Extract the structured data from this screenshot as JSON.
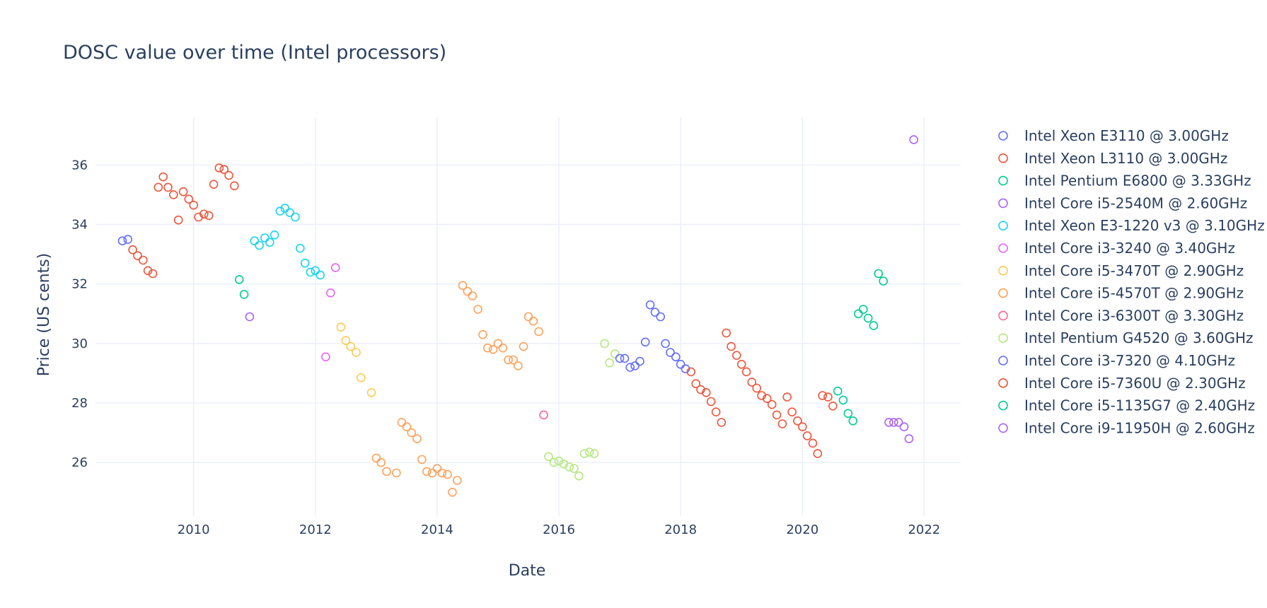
{
  "chart_data": {
    "type": "scatter",
    "title": "DOSC value over time (Intel processors)",
    "xlabel": "Date",
    "ylabel": "Price (US cents)",
    "xlim": [
      2008.4,
      2022.6
    ],
    "ylim": [
      24.2,
      37.6
    ],
    "x_ticks": [
      2010,
      2012,
      2014,
      2016,
      2018,
      2020,
      2022
    ],
    "y_ticks": [
      26,
      28,
      30,
      32,
      34,
      36
    ],
    "grid": true,
    "legend_position": "right",
    "marker": "open-circle",
    "series": [
      {
        "name": "Intel Xeon E3110 @ 3.00GHz",
        "color": "#636efa",
        "points": [
          [
            2008.83,
            33.45
          ],
          [
            2008.92,
            33.5
          ]
        ]
      },
      {
        "name": "Intel Xeon L3110 @ 3.00GHz",
        "color": "#ef553b",
        "points": [
          [
            2009.0,
            33.15
          ],
          [
            2009.08,
            32.95
          ],
          [
            2009.17,
            32.8
          ],
          [
            2009.25,
            32.45
          ],
          [
            2009.33,
            32.35
          ],
          [
            2009.42,
            35.25
          ],
          [
            2009.5,
            35.6
          ],
          [
            2009.58,
            35.25
          ],
          [
            2009.67,
            35.0
          ],
          [
            2009.75,
            34.15
          ],
          [
            2009.83,
            35.1
          ],
          [
            2009.92,
            34.85
          ],
          [
            2010.0,
            34.65
          ],
          [
            2010.08,
            34.25
          ],
          [
            2010.17,
            34.35
          ],
          [
            2010.25,
            34.3
          ],
          [
            2010.33,
            35.35
          ],
          [
            2010.42,
            35.9
          ],
          [
            2010.5,
            35.85
          ],
          [
            2010.58,
            35.65
          ],
          [
            2010.67,
            35.3
          ]
        ]
      },
      {
        "name": "Intel Pentium E6800 @ 3.33GHz",
        "color": "#00cc96",
        "points": [
          [
            2010.75,
            32.15
          ],
          [
            2010.83,
            31.65
          ]
        ]
      },
      {
        "name": "Intel Core i5-2540M @ 2.60GHz",
        "color": "#ab63fa",
        "points": [
          [
            2010.92,
            30.9
          ]
        ]
      },
      {
        "name": "Intel Xeon E3-1220 v3 @ 3.10GHz",
        "color": "#19d3f3",
        "points": [
          [
            2011.0,
            33.45
          ],
          [
            2011.08,
            33.3
          ],
          [
            2011.17,
            33.55
          ],
          [
            2011.25,
            33.4
          ],
          [
            2011.33,
            33.65
          ],
          [
            2011.42,
            34.45
          ],
          [
            2011.5,
            34.55
          ],
          [
            2011.58,
            34.4
          ],
          [
            2011.67,
            34.25
          ],
          [
            2011.75,
            33.2
          ],
          [
            2011.83,
            32.7
          ],
          [
            2011.92,
            32.4
          ],
          [
            2012.0,
            32.45
          ],
          [
            2012.08,
            32.3
          ]
        ]
      },
      {
        "name": "Intel Core i3-3240 @ 3.40GHz",
        "color": "#e763fa",
        "points": [
          [
            2012.17,
            29.55
          ],
          [
            2012.25,
            31.7
          ],
          [
            2012.33,
            32.55
          ]
        ]
      },
      {
        "name": "Intel Core i5-3470T @ 2.90GHz",
        "color": "#fecb52",
        "points": [
          [
            2012.42,
            30.55
          ],
          [
            2012.5,
            30.1
          ],
          [
            2012.58,
            29.9
          ],
          [
            2012.67,
            29.7
          ],
          [
            2012.75,
            28.85
          ],
          [
            2012.92,
            28.35
          ]
        ]
      },
      {
        "name": "Intel Core i5-4570T @ 2.90GHz",
        "color": "#ffa15a",
        "points": [
          [
            2013.0,
            26.15
          ],
          [
            2013.08,
            26.0
          ],
          [
            2013.17,
            25.7
          ],
          [
            2013.33,
            25.65
          ],
          [
            2013.42,
            27.35
          ],
          [
            2013.5,
            27.2
          ],
          [
            2013.58,
            27.0
          ],
          [
            2013.67,
            26.8
          ],
          [
            2013.75,
            26.1
          ],
          [
            2013.83,
            25.7
          ],
          [
            2013.92,
            25.65
          ],
          [
            2014.0,
            25.8
          ],
          [
            2014.08,
            25.65
          ],
          [
            2014.17,
            25.6
          ],
          [
            2014.25,
            25.0
          ],
          [
            2014.33,
            25.4
          ],
          [
            2014.42,
            31.95
          ],
          [
            2014.5,
            31.75
          ],
          [
            2014.58,
            31.6
          ],
          [
            2014.67,
            31.15
          ],
          [
            2014.75,
            30.3
          ],
          [
            2014.83,
            29.85
          ],
          [
            2014.92,
            29.8
          ],
          [
            2015.0,
            30.0
          ],
          [
            2015.08,
            29.85
          ],
          [
            2015.17,
            29.45
          ],
          [
            2015.25,
            29.45
          ],
          [
            2015.33,
            29.25
          ],
          [
            2015.42,
            29.9
          ],
          [
            2015.5,
            30.9
          ],
          [
            2015.58,
            30.75
          ],
          [
            2015.67,
            30.4
          ]
        ]
      },
      {
        "name": "Intel Core i3-6300T @ 3.30GHz",
        "color": "#ff6692",
        "points": [
          [
            2015.75,
            27.6
          ]
        ]
      },
      {
        "name": "Intel Pentium G4520 @ 3.60GHz",
        "color": "#b6e880",
        "points": [
          [
            2015.83,
            26.2
          ],
          [
            2015.92,
            26.0
          ],
          [
            2016.0,
            26.05
          ],
          [
            2016.08,
            25.95
          ],
          [
            2016.17,
            25.85
          ],
          [
            2016.25,
            25.8
          ],
          [
            2016.33,
            25.55
          ],
          [
            2016.42,
            26.3
          ],
          [
            2016.5,
            26.35
          ],
          [
            2016.58,
            26.3
          ],
          [
            2016.75,
            30.0
          ],
          [
            2016.83,
            29.35
          ],
          [
            2016.92,
            29.65
          ]
        ]
      },
      {
        "name": "Intel Core i3-7320 @ 4.10GHz",
        "color": "#636efa",
        "points": [
          [
            2017.0,
            29.5
          ],
          [
            2017.08,
            29.5
          ],
          [
            2017.17,
            29.2
          ],
          [
            2017.25,
            29.25
          ],
          [
            2017.33,
            29.4
          ],
          [
            2017.42,
            30.05
          ],
          [
            2017.5,
            31.3
          ],
          [
            2017.58,
            31.05
          ],
          [
            2017.67,
            30.9
          ],
          [
            2017.75,
            30.0
          ],
          [
            2017.83,
            29.7
          ],
          [
            2017.92,
            29.55
          ],
          [
            2018.0,
            29.3
          ],
          [
            2018.08,
            29.15
          ]
        ]
      },
      {
        "name": "Intel Core i5-7360U @ 2.30GHz",
        "color": "#ef553b",
        "points": [
          [
            2018.17,
            29.05
          ],
          [
            2018.25,
            28.65
          ],
          [
            2018.33,
            28.45
          ],
          [
            2018.42,
            28.35
          ],
          [
            2018.5,
            28.05
          ],
          [
            2018.58,
            27.7
          ],
          [
            2018.67,
            27.35
          ],
          [
            2018.75,
            30.35
          ],
          [
            2018.83,
            29.9
          ],
          [
            2018.92,
            29.6
          ],
          [
            2019.0,
            29.3
          ],
          [
            2019.08,
            29.05
          ],
          [
            2019.17,
            28.7
          ],
          [
            2019.25,
            28.5
          ],
          [
            2019.33,
            28.25
          ],
          [
            2019.42,
            28.15
          ],
          [
            2019.5,
            27.95
          ],
          [
            2019.58,
            27.6
          ],
          [
            2019.67,
            27.3
          ],
          [
            2019.75,
            28.2
          ],
          [
            2019.83,
            27.7
          ],
          [
            2019.92,
            27.4
          ],
          [
            2020.0,
            27.2
          ],
          [
            2020.08,
            26.9
          ],
          [
            2020.17,
            26.65
          ],
          [
            2020.25,
            26.3
          ],
          [
            2020.33,
            28.25
          ],
          [
            2020.42,
            28.2
          ],
          [
            2020.5,
            27.9
          ]
        ]
      },
      {
        "name": "Intel Core i5-1135G7 @ 2.40GHz",
        "color": "#00cc96",
        "points": [
          [
            2020.58,
            28.4
          ],
          [
            2020.67,
            28.1
          ],
          [
            2020.75,
            27.65
          ],
          [
            2020.83,
            27.4
          ],
          [
            2020.92,
            31.0
          ],
          [
            2021.0,
            31.15
          ],
          [
            2021.08,
            30.85
          ],
          [
            2021.17,
            30.6
          ],
          [
            2021.25,
            32.35
          ],
          [
            2021.33,
            32.1
          ]
        ]
      },
      {
        "name": "Intel Core i9-11950H @ 2.60GHz",
        "color": "#ab63fa",
        "points": [
          [
            2021.42,
            27.35
          ],
          [
            2021.5,
            27.35
          ],
          [
            2021.58,
            27.35
          ],
          [
            2021.67,
            27.2
          ],
          [
            2021.75,
            26.8
          ],
          [
            2021.83,
            36.85
          ]
        ]
      }
    ]
  }
}
